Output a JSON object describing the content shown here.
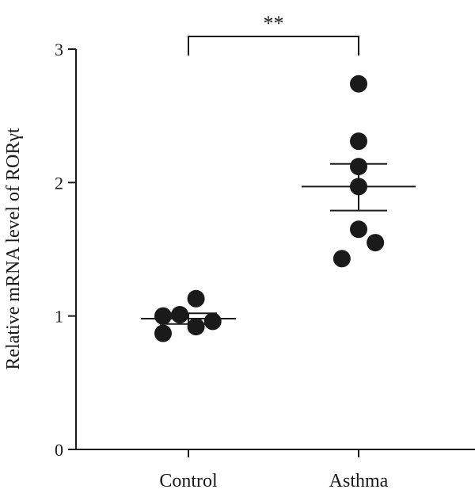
{
  "chart_data": {
    "type": "scatter",
    "title": "",
    "xlabel": "",
    "ylabel": "Relative mRNA level of RORγt",
    "categories": [
      "Control",
      "Asthma"
    ],
    "ylim": [
      0,
      3
    ],
    "yticks": [
      "0",
      "1",
      "2",
      "3"
    ],
    "series": [
      {
        "category": "Control",
        "points": [
          {
            "x_offset": -0.5,
            "y": 1.0
          },
          {
            "x_offset": -0.5,
            "y": 0.87
          },
          {
            "x_offset": -0.17,
            "y": 1.01
          },
          {
            "x_offset": 0.15,
            "y": 1.13
          },
          {
            "x_offset": 0.15,
            "y": 0.92
          },
          {
            "x_offset": 0.48,
            "y": 0.96
          }
        ],
        "mean": 0.98,
        "sem_low": 0.94,
        "sem_high": 1.02
      },
      {
        "category": "Asthma",
        "points": [
          {
            "x_offset": 0.0,
            "y": 2.74
          },
          {
            "x_offset": 0.0,
            "y": 2.31
          },
          {
            "x_offset": 0.0,
            "y": 2.12
          },
          {
            "x_offset": 0.0,
            "y": 1.97
          },
          {
            "x_offset": 0.0,
            "y": 1.65
          },
          {
            "x_offset": -0.33,
            "y": 1.43
          },
          {
            "x_offset": 0.33,
            "y": 1.55
          }
        ],
        "mean": 1.97,
        "sem_low": 1.79,
        "sem_high": 2.14
      }
    ],
    "significance": {
      "label": "**",
      "between": [
        "Control",
        "Asthma"
      ]
    }
  }
}
